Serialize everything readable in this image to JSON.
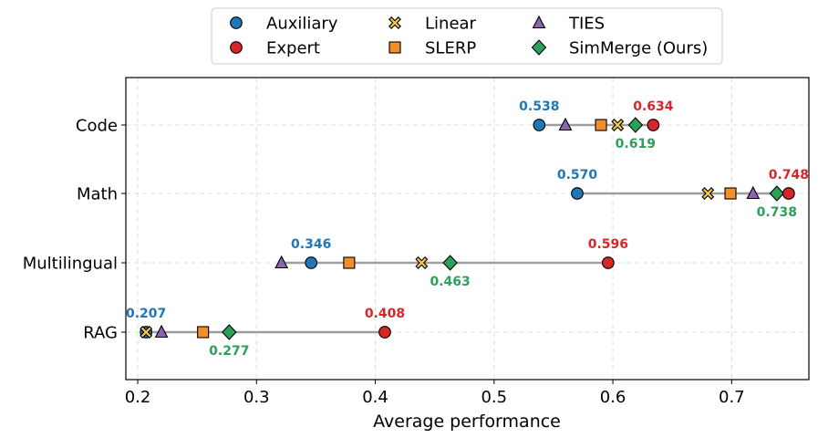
{
  "chart_data": {
    "type": "dot-range",
    "title": "",
    "xlabel": "Average performance",
    "ylabel": "",
    "xlim": [
      0.19,
      0.765
    ],
    "xticks": [
      0.2,
      0.3,
      0.4,
      0.5,
      0.6,
      0.7
    ],
    "xtick_labels": [
      "0.2",
      "0.3",
      "0.4",
      "0.5",
      "0.6",
      "0.7"
    ],
    "grid": true,
    "categories": [
      "Code",
      "Math",
      "Multilingual",
      "RAG"
    ],
    "series": [
      {
        "name": "Auxiliary",
        "marker": "circle",
        "color": "#1f77b4",
        "values": [
          0.538,
          0.57,
          0.346,
          0.207
        ]
      },
      {
        "name": "Expert",
        "marker": "circle",
        "color": "#d62728",
        "values": [
          0.634,
          0.748,
          0.596,
          0.408
        ]
      },
      {
        "name": "Linear",
        "marker": "x-square",
        "color": "#f2c744",
        "values": [
          0.604,
          0.68,
          0.439,
          0.207
        ]
      },
      {
        "name": "SLERP",
        "marker": "square",
        "color": "#f28e2b",
        "values": [
          0.59,
          0.699,
          0.378,
          0.255
        ]
      },
      {
        "name": "TIES",
        "marker": "triangle",
        "color": "#8c64b4",
        "values": [
          0.56,
          0.718,
          0.321,
          0.22
        ]
      },
      {
        "name": "SimMerge (Ours)",
        "marker": "diamond",
        "color": "#2ca05a",
        "values": [
          0.619,
          0.738,
          0.463,
          0.277
        ]
      }
    ],
    "annotations": [
      {
        "category": "Code",
        "series": "Auxiliary",
        "text": "0.538",
        "position": "above"
      },
      {
        "category": "Code",
        "series": "Expert",
        "text": "0.634",
        "position": "above"
      },
      {
        "category": "Code",
        "series": "SimMerge (Ours)",
        "text": "0.619",
        "position": "below"
      },
      {
        "category": "Math",
        "series": "Auxiliary",
        "text": "0.570",
        "position": "above"
      },
      {
        "category": "Math",
        "series": "Expert",
        "text": "0.748",
        "position": "above"
      },
      {
        "category": "Math",
        "series": "SimMerge (Ours)",
        "text": "0.738",
        "position": "below"
      },
      {
        "category": "Multilingual",
        "series": "Auxiliary",
        "text": "0.346",
        "position": "above"
      },
      {
        "category": "Multilingual",
        "series": "Expert",
        "text": "0.596",
        "position": "above"
      },
      {
        "category": "Multilingual",
        "series": "SimMerge (Ours)",
        "text": "0.463",
        "position": "below"
      },
      {
        "category": "RAG",
        "series": "Auxiliary",
        "text": "0.207",
        "position": "above"
      },
      {
        "category": "RAG",
        "series": "Expert",
        "text": "0.408",
        "position": "above"
      },
      {
        "category": "RAG",
        "series": "SimMerge (Ours)",
        "text": "0.277",
        "position": "below"
      }
    ],
    "legend": {
      "placement": "top-center",
      "columns": 3,
      "order": [
        "Auxiliary",
        "Expert",
        "Linear",
        "SLERP",
        "TIES",
        "SimMerge (Ours)"
      ]
    },
    "colors": {
      "range_line": "#9e9e9e",
      "grid": "#dddddd",
      "label_auxiliary": "#1f77b4",
      "label_expert": "#d62728",
      "label_simmerge": "#2ca05a"
    }
  }
}
